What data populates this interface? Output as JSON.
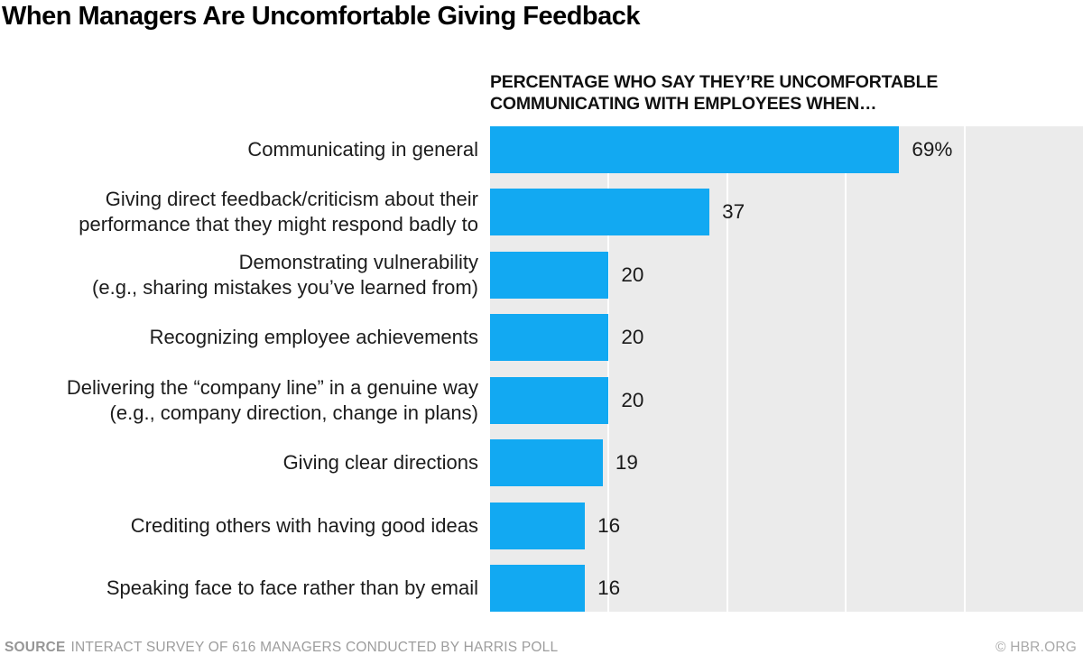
{
  "header": {
    "title": "When Managers Are Uncomfortable Giving Feedback"
  },
  "chart_data": {
    "type": "bar",
    "orientation": "horizontal",
    "subtitle": "PERCENTAGE WHO SAY THEY’RE UNCOMFORTABLE\nCOMMUNICATING WITH EMPLOYEES WHEN…",
    "categories": [
      "Communicating in general",
      "Giving direct feedback/criticism about their\nperformance that they might respond badly to",
      "Demonstrating vulnerability\n(e.g., sharing mistakes you’ve learned from)",
      "Recognizing employee achievements",
      "Delivering the “company line” in a genuine way\n(e.g., company direction, change in plans)",
      "Giving clear directions",
      "Crediting others with having good ideas",
      "Speaking face to face rather than by email"
    ],
    "values": [
      69,
      37,
      20,
      20,
      20,
      19,
      16,
      16
    ],
    "value_labels": [
      "69%",
      "37",
      "20",
      "20",
      "20",
      "19",
      "16",
      "16"
    ],
    "xlabel": "",
    "ylabel": "",
    "xlim": [
      0,
      100
    ],
    "gridlines": [
      20,
      40,
      60,
      80
    ],
    "grid_visible": true,
    "legend_position": "none"
  },
  "colors": {
    "bar": "#12a9f2",
    "plot_bg": "#ebebeb",
    "gridline": "#ffffff",
    "text": "#1a1a1a",
    "muted": "#9d9d9d"
  },
  "footer": {
    "source_label": "SOURCE",
    "source_text": "INTERACT SURVEY OF 616 MANAGERS CONDUCTED BY HARRIS POLL",
    "credit": "© HBR.ORG"
  }
}
